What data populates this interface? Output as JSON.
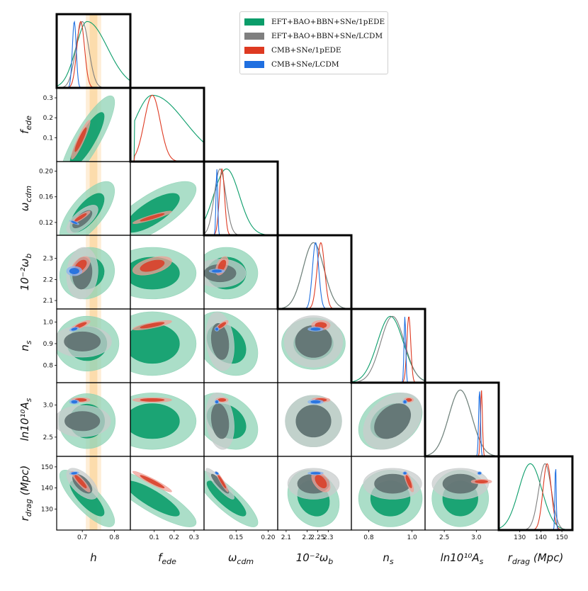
{
  "chart_data": {
    "type": "corner",
    "title": "",
    "parameters": [
      {
        "key": "h",
        "label_base": "h",
        "label_sub": "",
        "label_prefix": "",
        "range": [
          0.62,
          0.85
        ],
        "ticks": [
          0.7,
          0.8
        ],
        "tick_labels": [
          "0.7",
          "0.8"
        ]
      },
      {
        "key": "fede",
        "label_base": "f",
        "label_sub": "ede",
        "label_prefix": "",
        "range": [
          -0.02,
          0.35
        ],
        "ticks": [
          0.1,
          0.2,
          0.3
        ],
        "tick_labels": [
          "0.1",
          "0.2",
          "0.3"
        ]
      },
      {
        "key": "wcdm",
        "label_base": "ω",
        "label_sub": "cdm",
        "label_prefix": "",
        "range": [
          0.1,
          0.215
        ],
        "ticks": [
          0.12,
          0.16,
          0.2
        ],
        "tick_labels": [
          "0.12",
          "0.16",
          "0.20"
        ],
        "xticks": [
          0.15,
          0.2
        ],
        "xtick_labels": [
          "0.15",
          "0.20"
        ]
      },
      {
        "key": "wb",
        "label_base": "ω",
        "label_sub": "b",
        "label_prefix": "10⁻²",
        "range": [
          2.06,
          2.41
        ],
        "ticks": [
          2.1,
          2.2,
          2.3
        ],
        "tick_labels": [
          "2.1",
          "2.2",
          "2.3"
        ],
        "xticks": [
          2.1,
          2.2,
          2.25,
          2.3
        ],
        "xtick_labels": [
          "2.1",
          "2.2",
          "2.25",
          "2.3"
        ]
      },
      {
        "key": "ns",
        "label_base": "n",
        "label_sub": "s",
        "label_prefix": "",
        "range": [
          0.72,
          1.06
        ],
        "ticks": [
          0.8,
          0.9,
          1.0
        ],
        "tick_labels": [
          "0.8",
          "0.9",
          "1.0"
        ],
        "xticks": [
          0.8,
          1.0
        ],
        "xtick_labels": [
          "0.8",
          "1.0"
        ]
      },
      {
        "key": "As",
        "label_base": "A",
        "label_sub": "s",
        "label_prefix": "ln10¹⁰",
        "range": [
          2.2,
          3.35
        ],
        "ticks": [
          2.5,
          3.0
        ],
        "tick_labels": [
          "2.5",
          "3.0"
        ]
      },
      {
        "key": "rdrag",
        "label_base": "r",
        "label_sub": "drag",
        "label_prefix": "",
        "label_suffix": " (Mpc)",
        "range": [
          120,
          155
        ],
        "ticks": [
          130,
          140,
          150
        ],
        "tick_labels": [
          "130",
          "140",
          "150"
        ]
      }
    ],
    "legend": [
      {
        "label": "EFT+BAO+BBN+SNe/1pEDE",
        "color": "#0b9d6a"
      },
      {
        "label": "EFT+BAO+BBN+SNe/LCDM",
        "color": "#7f7f7f"
      },
      {
        "label": "CMB+SNe/1pEDE",
        "color": "#de3a22"
      },
      {
        "label": "CMB+SNe/LCDM",
        "color": "#1f6fe0"
      }
    ],
    "h_band": {
      "center": 0.735,
      "sigma1": 0.012,
      "sigma2": 0.024,
      "color": "#f9b24a"
    },
    "series": [
      {
        "name": "EFT+BAO+BBN+SNe/1pEDE",
        "color": "#0b9d6a",
        "fill_inner": "#0b9d6a",
        "fill_outer": "#8fd3b6",
        "mean": {
          "h": 0.715,
          "fede": 0.09,
          "wcdm": 0.135,
          "wb": 2.23,
          "ns": 0.9,
          "As": 2.75,
          "rdrag": 135
        },
        "sigma": {
          "h": 0.035,
          "fede": 0.09,
          "wcdm": 0.02,
          "wb": 0.05,
          "ns": 0.06,
          "As": 0.18,
          "rdrag": 5.5
        },
        "corr": {
          "h|fede": 0.85,
          "h|wcdm": 0.7,
          "fede|wcdm": 0.75,
          "h|rdrag": -0.8,
          "fede|rdrag": -0.85,
          "wcdm|rdrag": -0.85,
          "ns|As": 0.3,
          "wcdm|ns": -0.3,
          "wcdm|As": -0.3,
          "h|wb": 0.1,
          "wb|rdrag": -0.2
        },
        "skew": {
          "fede": 1,
          "h": 1
        }
      },
      {
        "name": "EFT+BAO+BBN+SNe/LCDM",
        "color": "#7f7f7f",
        "fill_inner": "#5f7070",
        "fill_outer": "#c8cccc",
        "mean": {
          "h": 0.7,
          "fede": 0.0,
          "wcdm": 0.125,
          "wb": 2.23,
          "ns": 0.91,
          "As": 2.75,
          "rdrag": 142
        },
        "sigma": {
          "h": 0.02,
          "fede": 0.0,
          "wcdm": 0.009,
          "wb": 0.05,
          "ns": 0.055,
          "As": 0.18,
          "rdrag": 3
        },
        "corr": {
          "h|wcdm": 0.7,
          "h|rdrag": -0.6,
          "wcdm|rdrag": -0.9,
          "ns|As": 0.35,
          "wcdm|ns": -0.2,
          "wcdm|As": -0.2,
          "h|wb": 0.1
        },
        "skew": {}
      },
      {
        "name": "CMB+SNe/1pEDE",
        "color": "#de3a22",
        "fill_inner": "#d9402a",
        "fill_outer": "#ef9f95",
        "mean": {
          "h": 0.695,
          "fede": 0.09,
          "wcdm": 0.128,
          "wb": 2.265,
          "ns": 0.985,
          "As": 3.08,
          "rdrag": 143
        },
        "sigma": {
          "h": 0.012,
          "fede": 0.04,
          "wcdm": 0.004,
          "wb": 0.018,
          "ns": 0.009,
          "As": 0.015,
          "rdrag": 2.0
        },
        "corr": {
          "h|fede": 0.92,
          "h|wcdm": 0.9,
          "fede|wcdm": 0.92,
          "h|rdrag": -0.9,
          "fede|rdrag": -0.95,
          "wcdm|rdrag": -0.95,
          "h|wb": 0.5,
          "fede|wb": 0.5,
          "wcdm|wb": 0.5,
          "h|ns": 0.8,
          "fede|ns": 0.8,
          "wcdm|ns": 0.8,
          "ns|rdrag": -0.8,
          "wb|rdrag": -0.5
        },
        "skew": {}
      },
      {
        "name": "CMB+SNe/LCDM",
        "color": "#1f6fe0",
        "fill_inner": "#1f6fe0",
        "fill_outer": "#8ab4f0",
        "mean": {
          "h": 0.675,
          "fede": 0.0,
          "wcdm": 0.12,
          "wb": 2.24,
          "ns": 0.967,
          "As": 3.05,
          "rdrag": 147
        },
        "sigma": {
          "h": 0.006,
          "fede": 0.0,
          "wcdm": 0.0013,
          "wb": 0.015,
          "ns": 0.004,
          "As": 0.014,
          "rdrag": 0.3
        },
        "corr": {
          "h|wcdm": -0.9,
          "h|rdrag": 0.3,
          "wcdm|rdrag": -0.6,
          "h|ns": 0.5
        },
        "skew": {}
      }
    ]
  }
}
